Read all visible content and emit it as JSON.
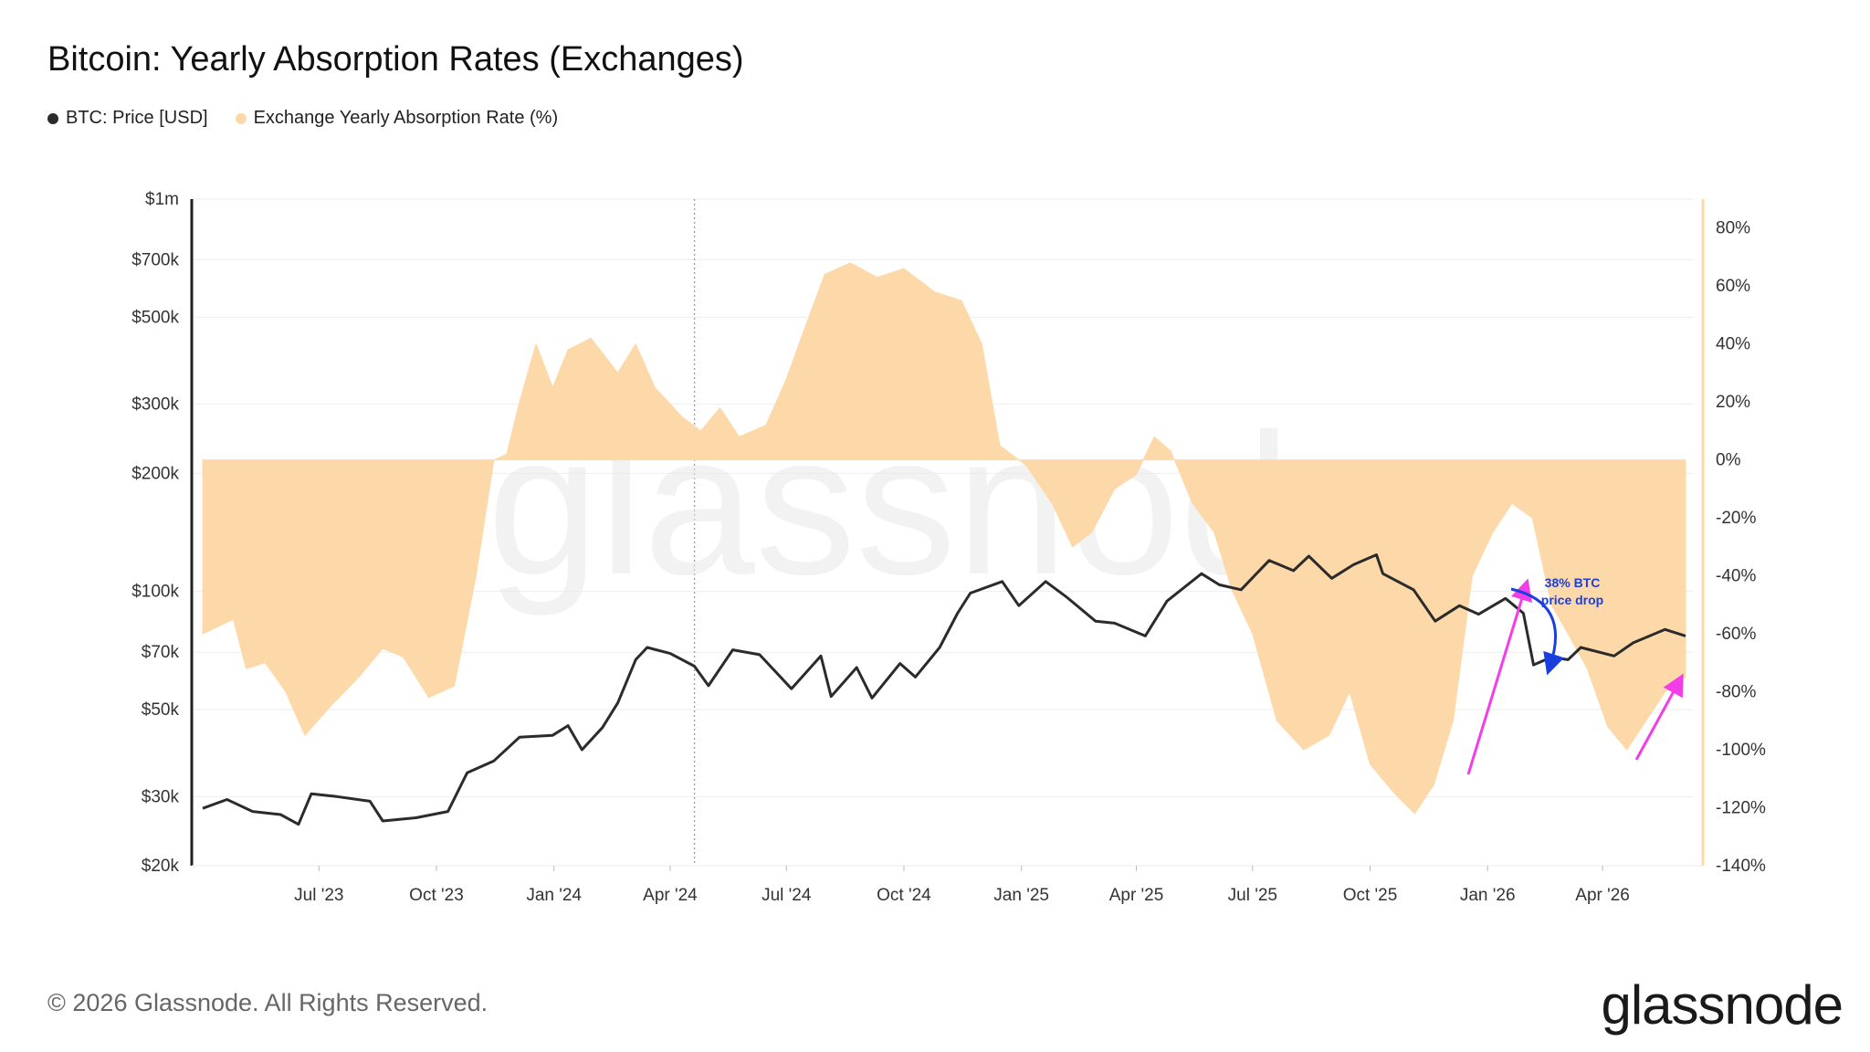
{
  "title": "Bitcoin: Yearly Absorption Rates (Exchanges)",
  "legend": {
    "price": "BTC: Price [USD]",
    "rate": "Exchange Yearly Absorption Rate (%)"
  },
  "footer": "© 2026 Glassnode. All Rights Reserved.",
  "brand": "glassnode",
  "watermark": "glassnode",
  "colors": {
    "price": "#2b2b2b",
    "rate": "#fdd9aa",
    "price_overlay": "#8a6a3e",
    "arrow_magenta": "#f23de8",
    "arrow_blue": "#1a3fe0"
  },
  "chart_data": {
    "type": "line",
    "x_range": [
      "2023-04-01",
      "2026-06-10"
    ],
    "x_ticks": [
      "Jul '23",
      "Oct '23",
      "Jan '24",
      "Apr '24",
      "Jul '24",
      "Oct '24",
      "Jan '25",
      "Apr '25",
      "Jul '25",
      "Oct '25",
      "Jan '26",
      "Apr '26"
    ],
    "x_tick_dates": [
      "2023-07-01",
      "2023-10-01",
      "2024-01-01",
      "2024-04-01",
      "2024-07-01",
      "2024-10-01",
      "2025-01-01",
      "2025-04-01",
      "2025-07-01",
      "2025-10-01",
      "2026-01-01",
      "2026-04-01"
    ],
    "y_left": {
      "scale": "log",
      "ticks": [
        "$1m",
        "$700k",
        "$500k",
        "$300k",
        "$200k",
        "$100k",
        "$70k",
        "$50k",
        "$30k",
        "$20k"
      ],
      "tick_values": [
        1000000,
        700000,
        500000,
        300000,
        200000,
        100000,
        70000,
        50000,
        30000,
        20000
      ],
      "range": [
        20000,
        1000000
      ]
    },
    "y_right": {
      "ticks": [
        "80%",
        "60%",
        "40%",
        "20%",
        "0%",
        "-20%",
        "-40%",
        "-60%",
        "-80%",
        "-100%",
        "-120%",
        "-140%"
      ],
      "tick_values": [
        80,
        60,
        40,
        20,
        0,
        -20,
        -40,
        -60,
        -80,
        -100,
        -120,
        -140
      ],
      "range": [
        -140,
        90
      ]
    },
    "vertical_marker_date": "2024-04-20",
    "series": [
      {
        "name": "BTC: Price [USD]",
        "axis": "left",
        "points": [
          [
            "2023-04-01",
            28000
          ],
          [
            "2023-04-20",
            29500
          ],
          [
            "2023-05-10",
            27500
          ],
          [
            "2023-06-01",
            27000
          ],
          [
            "2023-06-15",
            25500
          ],
          [
            "2023-06-25",
            30500
          ],
          [
            "2023-07-15",
            30000
          ],
          [
            "2023-08-10",
            29200
          ],
          [
            "2023-08-20",
            26000
          ],
          [
            "2023-09-15",
            26500
          ],
          [
            "2023-10-10",
            27500
          ],
          [
            "2023-10-25",
            34500
          ],
          [
            "2023-11-15",
            37000
          ],
          [
            "2023-12-05",
            42500
          ],
          [
            "2023-12-31",
            43000
          ],
          [
            "2024-01-12",
            45500
          ],
          [
            "2024-01-23",
            39500
          ],
          [
            "2024-02-08",
            45000
          ],
          [
            "2024-02-20",
            52000
          ],
          [
            "2024-03-05",
            67000
          ],
          [
            "2024-03-14",
            72000
          ],
          [
            "2024-04-01",
            69500
          ],
          [
            "2024-04-20",
            64500
          ],
          [
            "2024-05-01",
            57500
          ],
          [
            "2024-05-20",
            71000
          ],
          [
            "2024-06-10",
            69000
          ],
          [
            "2024-07-05",
            56500
          ],
          [
            "2024-07-28",
            68500
          ],
          [
            "2024-08-05",
            54000
          ],
          [
            "2024-08-25",
            64000
          ],
          [
            "2024-09-06",
            53500
          ],
          [
            "2024-09-28",
            65500
          ],
          [
            "2024-10-10",
            60500
          ],
          [
            "2024-10-29",
            72000
          ],
          [
            "2024-11-12",
            88000
          ],
          [
            "2024-11-22",
            99000
          ],
          [
            "2024-12-17",
            106000
          ],
          [
            "2024-12-30",
            92000
          ],
          [
            "2025-01-20",
            106000
          ],
          [
            "2025-02-05",
            97000
          ],
          [
            "2025-02-28",
            84000
          ],
          [
            "2025-03-15",
            83000
          ],
          [
            "2025-04-08",
            77000
          ],
          [
            "2025-04-25",
            94500
          ],
          [
            "2025-05-22",
            111000
          ],
          [
            "2025-06-05",
            104000
          ],
          [
            "2025-06-22",
            101000
          ],
          [
            "2025-07-14",
            120000
          ],
          [
            "2025-08-02",
            113000
          ],
          [
            "2025-08-14",
            123000
          ],
          [
            "2025-09-01",
            108000
          ],
          [
            "2025-09-18",
            117000
          ],
          [
            "2025-10-06",
            124000
          ],
          [
            "2025-10-11",
            111000
          ],
          [
            "2025-11-04",
            101000
          ],
          [
            "2025-11-21",
            84000
          ],
          [
            "2025-12-10",
            92000
          ],
          [
            "2025-12-25",
            87500
          ],
          [
            "2026-01-15",
            96000
          ],
          [
            "2026-01-29",
            88000
          ],
          [
            "2026-02-06",
            65000
          ],
          [
            "2026-02-20",
            68000
          ],
          [
            "2026-03-05",
            67000
          ],
          [
            "2026-03-15",
            72000
          ],
          [
            "2026-04-10",
            68500
          ],
          [
            "2026-04-25",
            74000
          ],
          [
            "2026-05-20",
            80000
          ],
          [
            "2026-06-05",
            77000
          ]
        ]
      },
      {
        "name": "Exchange Yearly Absorption Rate (%)",
        "axis": "right",
        "type": "area",
        "points": [
          [
            "2023-04-01",
            -60
          ],
          [
            "2023-04-25",
            -55
          ],
          [
            "2023-05-05",
            -72
          ],
          [
            "2023-05-20",
            -70
          ],
          [
            "2023-06-05",
            -80
          ],
          [
            "2023-06-20",
            -95
          ],
          [
            "2023-07-10",
            -85
          ],
          [
            "2023-08-01",
            -75
          ],
          [
            "2023-08-20",
            -65
          ],
          [
            "2023-09-05",
            -68
          ],
          [
            "2023-09-25",
            -82
          ],
          [
            "2023-10-15",
            -78
          ],
          [
            "2023-11-01",
            -40
          ],
          [
            "2023-11-15",
            0
          ],
          [
            "2023-11-25",
            2
          ],
          [
            "2023-12-05",
            20
          ],
          [
            "2023-12-18",
            40
          ],
          [
            "2023-12-31",
            25
          ],
          [
            "2024-01-12",
            38
          ],
          [
            "2024-01-30",
            42
          ],
          [
            "2024-02-20",
            30
          ],
          [
            "2024-03-05",
            40
          ],
          [
            "2024-03-20",
            25
          ],
          [
            "2024-04-10",
            15
          ],
          [
            "2024-04-25",
            10
          ],
          [
            "2024-05-10",
            18
          ],
          [
            "2024-05-25",
            8
          ],
          [
            "2024-06-15",
            12
          ],
          [
            "2024-07-01",
            28
          ],
          [
            "2024-07-15",
            45
          ],
          [
            "2024-07-31",
            64
          ],
          [
            "2024-08-20",
            68
          ],
          [
            "2024-09-10",
            63
          ],
          [
            "2024-10-01",
            66
          ],
          [
            "2024-10-25",
            58
          ],
          [
            "2024-11-15",
            55
          ],
          [
            "2024-12-01",
            40
          ],
          [
            "2024-12-15",
            5
          ],
          [
            "2025-01-05",
            -2
          ],
          [
            "2025-01-25",
            -15
          ],
          [
            "2025-02-10",
            -30
          ],
          [
            "2025-02-25",
            -25
          ],
          [
            "2025-03-15",
            -10
          ],
          [
            "2025-04-01",
            -5
          ],
          [
            "2025-04-15",
            8
          ],
          [
            "2025-04-28",
            3
          ],
          [
            "2025-05-15",
            -15
          ],
          [
            "2025-06-01",
            -25
          ],
          [
            "2025-06-15",
            -45
          ],
          [
            "2025-07-01",
            -60
          ],
          [
            "2025-07-20",
            -90
          ],
          [
            "2025-08-10",
            -100
          ],
          [
            "2025-08-30",
            -95
          ],
          [
            "2025-09-15",
            -80
          ],
          [
            "2025-10-01",
            -105
          ],
          [
            "2025-10-20",
            -115
          ],
          [
            "2025-11-05",
            -122
          ],
          [
            "2025-11-20",
            -112
          ],
          [
            "2025-12-05",
            -90
          ],
          [
            "2025-12-20",
            -40
          ],
          [
            "2026-01-05",
            -25
          ],
          [
            "2026-01-20",
            -15
          ],
          [
            "2026-02-05",
            -20
          ],
          [
            "2026-02-20",
            -50
          ],
          [
            "2026-03-05",
            -60
          ],
          [
            "2026-03-20",
            -72
          ],
          [
            "2026-04-05",
            -92
          ],
          [
            "2026-04-20",
            -100
          ],
          [
            "2026-05-05",
            -90
          ],
          [
            "2026-05-20",
            -80
          ],
          [
            "2026-06-05",
            -75
          ]
        ]
      }
    ],
    "annotations": [
      {
        "text_line1": "38% BTC",
        "text_line2": "price drop",
        "date": "2026-01-25",
        "price": 97000
      }
    ]
  }
}
